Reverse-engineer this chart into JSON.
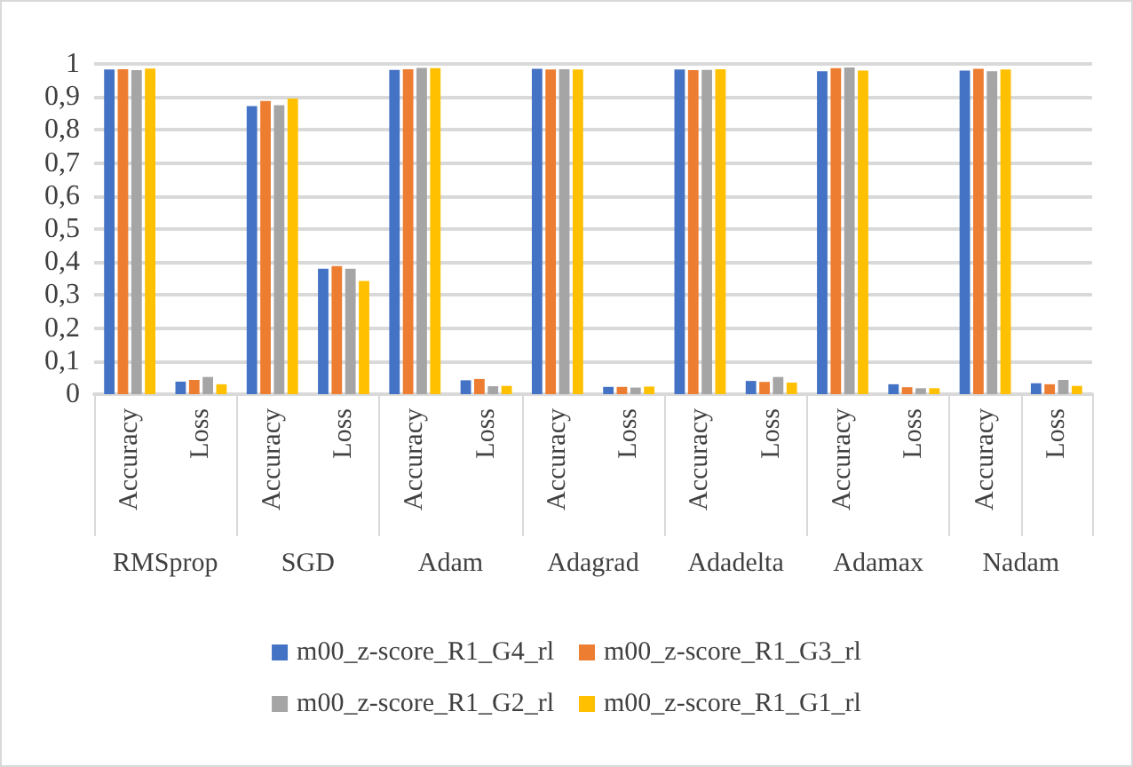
{
  "chart_data": {
    "type": "bar",
    "categories": [
      "Accuracy",
      "Loss",
      "Accuracy",
      "Loss",
      "Accuracy",
      "Loss",
      "Accuracy",
      "Loss",
      "Accuracy",
      "Loss",
      "Accuracy",
      "Loss",
      "Accuracy",
      "Loss"
    ],
    "annotations": [
      "RMSprop",
      "SGD",
      "Adam",
      "Adagrad",
      "Adadelta",
      "Adamax",
      "Nadam"
    ],
    "series": [
      {
        "name": "m00_z-score_R1_G4_rl",
        "color": "#4472c4",
        "values": [
          0.983,
          0.038,
          0.872,
          0.38,
          0.982,
          0.042,
          0.985,
          0.022,
          0.983,
          0.04,
          0.978,
          0.03,
          0.98,
          0.033
        ]
      },
      {
        "name": "m00_z-score_R1_G3_rl",
        "color": "#ed7d31",
        "values": [
          0.984,
          0.043,
          0.888,
          0.388,
          0.984,
          0.046,
          0.983,
          0.022,
          0.981,
          0.037,
          0.987,
          0.021,
          0.985,
          0.03
        ]
      },
      {
        "name": "m00_z-score_R1_G2_rl",
        "color": "#a5a5a5",
        "values": [
          0.981,
          0.052,
          0.875,
          0.38,
          0.988,
          0.024,
          0.984,
          0.02,
          0.982,
          0.052,
          0.989,
          0.018,
          0.978,
          0.043
        ]
      },
      {
        "name": "m00_z-score_R1_G1_rl",
        "color": "#ffc000",
        "values": [
          0.986,
          0.03,
          0.895,
          0.343,
          0.987,
          0.025,
          0.983,
          0.023,
          0.984,
          0.035,
          0.98,
          0.018,
          0.983,
          0.025
        ]
      }
    ],
    "ylim": [
      0,
      1
    ],
    "yticks": [
      0,
      {
        "value": 0.1,
        "label": "0,1"
      },
      {
        "value": 0.2,
        "label": "0,2"
      },
      {
        "value": 0.3,
        "label": "0,3"
      },
      {
        "value": 0.4,
        "label": "0,4"
      },
      {
        "value": 0.5,
        "label": "0,5"
      },
      {
        "value": 0.6,
        "label": "0,6"
      },
      {
        "value": 0.7,
        "label": "0,7"
      },
      {
        "value": 0.8,
        "label": "0,8"
      },
      {
        "value": 0.9,
        "label": "0,9"
      },
      1
    ],
    "grid": "y",
    "legend": "bottom"
  }
}
